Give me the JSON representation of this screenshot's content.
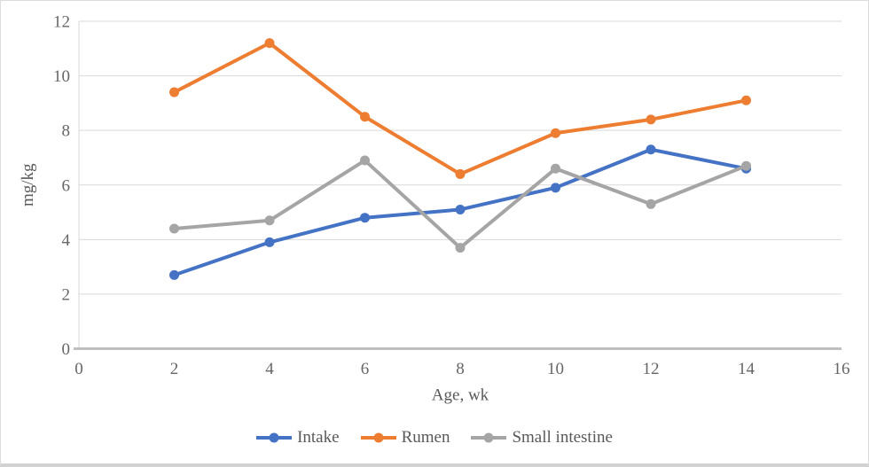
{
  "chart_data": {
    "type": "line",
    "title": "",
    "xlabel": "Age, wk",
    "ylabel": "mg/kg",
    "x": [
      2,
      4,
      6,
      8,
      10,
      12,
      14
    ],
    "xlim": [
      0,
      16
    ],
    "ylim": [
      0,
      12
    ],
    "xticks": [
      0,
      2,
      4,
      6,
      8,
      10,
      12,
      14,
      16
    ],
    "yticks": [
      0,
      2,
      4,
      6,
      8,
      10,
      12
    ],
    "grid": "horizontal",
    "legend_position": "bottom",
    "series": [
      {
        "name": "Intake",
        "color": "#4472C4",
        "values": [
          2.7,
          3.9,
          4.8,
          5.1,
          5.9,
          7.3,
          6.6
        ]
      },
      {
        "name": "Rumen",
        "color": "#ED7D31",
        "values": [
          9.4,
          11.2,
          8.5,
          6.4,
          7.9,
          8.4,
          9.1
        ]
      },
      {
        "name": "Small intestine",
        "color": "#A5A5A5",
        "values": [
          4.4,
          4.7,
          6.9,
          3.7,
          6.6,
          5.3,
          6.7
        ]
      }
    ]
  },
  "colors": {
    "gridline": "#D9D9D9",
    "plot_border": "#D9D9D9",
    "axis_line": "#BFBFBF",
    "tick_text": "#666666",
    "title_text": "#595959"
  }
}
